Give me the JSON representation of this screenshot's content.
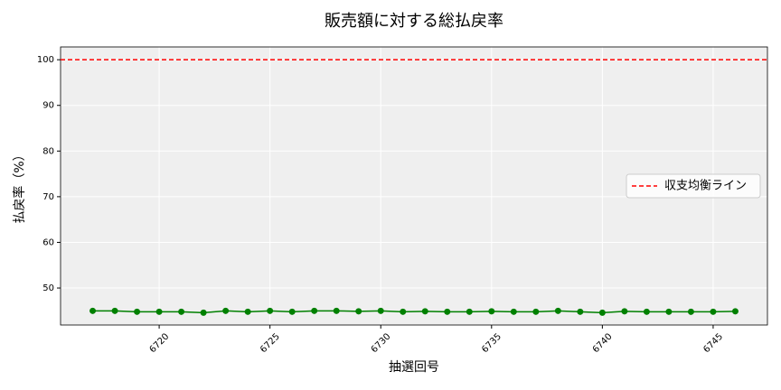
{
  "chart_data": {
    "type": "line",
    "title": "販売額に対する総払戻率",
    "xlabel": "抽選回号",
    "ylabel": "払戻率（%）",
    "x": [
      6717,
      6718,
      6719,
      6720,
      6721,
      6722,
      6723,
      6724,
      6725,
      6726,
      6727,
      6728,
      6729,
      6730,
      6731,
      6732,
      6733,
      6734,
      6735,
      6736,
      6737,
      6738,
      6739,
      6740,
      6741,
      6742,
      6743,
      6744,
      6745,
      6746
    ],
    "series": [
      {
        "color": "green",
        "values": [
          45.0,
          45.0,
          44.8,
          44.8,
          44.8,
          44.6,
          45.0,
          44.8,
          45.0,
          44.8,
          45.0,
          45.0,
          44.9,
          45.0,
          44.8,
          44.9,
          44.8,
          44.8,
          44.9,
          44.8,
          44.8,
          45.0,
          44.8,
          44.6,
          44.9,
          44.8,
          44.8,
          44.8,
          44.8,
          44.9
        ]
      }
    ],
    "hlines": [
      {
        "name": "収支均衡ライン",
        "value": 100,
        "color": "red"
      }
    ],
    "xlim": [
      6715.55,
      6747.45
    ],
    "ylim": [
      41.9,
      102.8
    ],
    "xticks": [
      6720,
      6725,
      6730,
      6735,
      6740,
      6745
    ],
    "yticks": [
      50,
      60,
      70,
      80,
      90,
      100
    ],
    "grid": true,
    "legend": "center right"
  }
}
